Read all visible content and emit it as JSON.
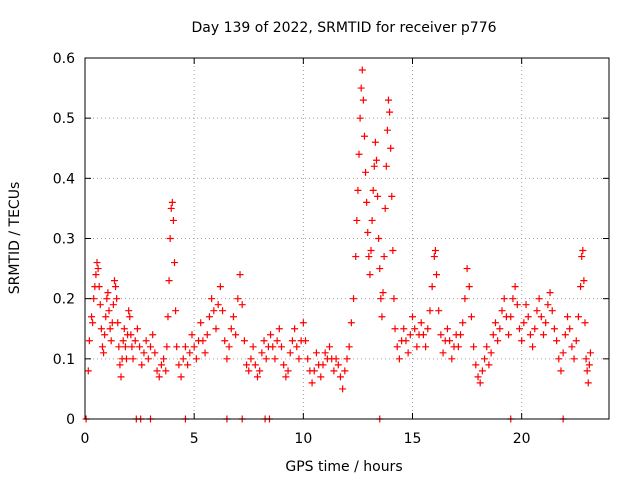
{
  "chart_data": {
    "type": "scatter",
    "title": "Day 139 of 2022, SRMTID for receiver p776",
    "xlabel": "GPS time / hours",
    "ylabel": "SRMTID / TECUs",
    "xlim": [
      0,
      24
    ],
    "ylim": [
      0,
      0.6
    ],
    "x_ticks": [
      0,
      5,
      10,
      15,
      20
    ],
    "x_tick_labels": [
      "0",
      "5",
      "10",
      "15",
      "20"
    ],
    "y_ticks": [
      0,
      0.1,
      0.2,
      0.3,
      0.4,
      0.5,
      0.6
    ],
    "y_tick_labels": [
      "0",
      "0.1",
      "0.2",
      "0.3",
      "0.4",
      "0.5",
      "0.6"
    ],
    "grid": true,
    "marker": "+",
    "color": "#ff0000",
    "series": [
      {
        "name": "SRMTID",
        "points": [
          [
            0.15,
            0.08
          ],
          [
            0.2,
            0.13
          ],
          [
            0.3,
            0.17
          ],
          [
            0.35,
            0.16
          ],
          [
            0.4,
            0.2
          ],
          [
            0.45,
            0.22
          ],
          [
            0.5,
            0.24
          ],
          [
            0.55,
            0.26
          ],
          [
            0.6,
            0.25
          ],
          [
            0.65,
            0.22
          ],
          [
            0.7,
            0.19
          ],
          [
            0.75,
            0.15
          ],
          [
            0.8,
            0.12
          ],
          [
            0.85,
            0.11
          ],
          [
            0.9,
            0.14
          ],
          [
            0.95,
            0.17
          ],
          [
            1.0,
            0.2
          ],
          [
            1.05,
            0.21
          ],
          [
            1.1,
            0.18
          ],
          [
            1.15,
            0.15
          ],
          [
            1.2,
            0.13
          ],
          [
            1.25,
            0.16
          ],
          [
            1.3,
            0.19
          ],
          [
            1.35,
            0.23
          ],
          [
            1.4,
            0.22
          ],
          [
            1.45,
            0.2
          ],
          [
            1.5,
            0.16
          ],
          [
            1.55,
            0.12
          ],
          [
            1.6,
            0.09
          ],
          [
            1.65,
            0.07
          ],
          [
            1.7,
            0.1
          ],
          [
            1.75,
            0.13
          ],
          [
            1.8,
            0.15
          ],
          [
            1.85,
            0.12
          ],
          [
            1.9,
            0.1
          ],
          [
            1.95,
            0.14
          ],
          [
            2.0,
            0.18
          ],
          [
            2.05,
            0.17
          ],
          [
            2.1,
            0.14
          ],
          [
            2.15,
            0.12
          ],
          [
            2.2,
            0.1
          ],
          [
            2.3,
            0.13
          ],
          [
            2.4,
            0.15
          ],
          [
            2.5,
            0.12
          ],
          [
            2.6,
            0.09
          ],
          [
            2.7,
            0.11
          ],
          [
            2.8,
            0.13
          ],
          [
            2.9,
            0.1
          ],
          [
            3.0,
            0.12
          ],
          [
            3.1,
            0.14
          ],
          [
            3.2,
            0.11
          ],
          [
            3.3,
            0.08
          ],
          [
            3.4,
            0.07
          ],
          [
            3.5,
            0.09
          ],
          [
            3.6,
            0.1
          ],
          [
            3.7,
            0.08
          ],
          [
            3.75,
            0.12
          ],
          [
            3.8,
            0.17
          ],
          [
            3.85,
            0.23
          ],
          [
            3.9,
            0.3
          ],
          [
            3.95,
            0.35
          ],
          [
            4.0,
            0.36
          ],
          [
            4.05,
            0.33
          ],
          [
            4.1,
            0.26
          ],
          [
            4.15,
            0.18
          ],
          [
            4.2,
            0.12
          ],
          [
            4.3,
            0.09
          ],
          [
            4.4,
            0.07
          ],
          [
            4.5,
            0.1
          ],
          [
            4.6,
            0.12
          ],
          [
            4.7,
            0.09
          ],
          [
            4.8,
            0.11
          ],
          [
            4.9,
            0.14
          ],
          [
            5.0,
            0.12
          ],
          [
            5.1,
            0.1
          ],
          [
            5.2,
            0.13
          ],
          [
            5.3,
            0.16
          ],
          [
            5.4,
            0.13
          ],
          [
            5.5,
            0.11
          ],
          [
            5.6,
            0.14
          ],
          [
            5.7,
            0.17
          ],
          [
            5.8,
            0.2
          ],
          [
            5.9,
            0.18
          ],
          [
            6.0,
            0.15
          ],
          [
            6.1,
            0.19
          ],
          [
            6.2,
            0.22
          ],
          [
            6.3,
            0.18
          ],
          [
            6.4,
            0.13
          ],
          [
            6.5,
            0.1
          ],
          [
            6.6,
            0.12
          ],
          [
            6.7,
            0.15
          ],
          [
            6.8,
            0.17
          ],
          [
            6.9,
            0.14
          ],
          [
            7.0,
            0.2
          ],
          [
            7.1,
            0.24
          ],
          [
            7.2,
            0.19
          ],
          [
            7.3,
            0.13
          ],
          [
            7.4,
            0.09
          ],
          [
            7.5,
            0.08
          ],
          [
            7.6,
            0.1
          ],
          [
            7.7,
            0.12
          ],
          [
            7.8,
            0.09
          ],
          [
            7.9,
            0.07
          ],
          [
            8.0,
            0.08
          ],
          [
            8.1,
            0.11
          ],
          [
            8.2,
            0.13
          ],
          [
            8.3,
            0.1
          ],
          [
            8.4,
            0.12
          ],
          [
            8.5,
            0.14
          ],
          [
            8.6,
            0.12
          ],
          [
            8.7,
            0.1
          ],
          [
            8.8,
            0.13
          ],
          [
            8.9,
            0.15
          ],
          [
            9.0,
            0.12
          ],
          [
            9.1,
            0.09
          ],
          [
            9.2,
            0.07
          ],
          [
            9.3,
            0.08
          ],
          [
            9.4,
            0.11
          ],
          [
            9.5,
            0.13
          ],
          [
            9.6,
            0.15
          ],
          [
            9.7,
            0.12
          ],
          [
            9.8,
            0.1
          ],
          [
            9.9,
            0.13
          ],
          [
            10.0,
            0.16
          ],
          [
            10.1,
            0.13
          ],
          [
            10.2,
            0.1
          ],
          [
            10.3,
            0.08
          ],
          [
            10.4,
            0.06
          ],
          [
            10.5,
            0.08
          ],
          [
            10.6,
            0.11
          ],
          [
            10.7,
            0.09
          ],
          [
            10.8,
            0.07
          ],
          [
            10.9,
            0.09
          ],
          [
            11.0,
            0.11
          ],
          [
            11.1,
            0.1
          ],
          [
            11.2,
            0.12
          ],
          [
            11.3,
            0.1
          ],
          [
            11.4,
            0.08
          ],
          [
            11.5,
            0.1
          ],
          [
            11.6,
            0.09
          ],
          [
            11.7,
            0.07
          ],
          [
            11.8,
            0.05
          ],
          [
            11.9,
            0.08
          ],
          [
            12.0,
            0.1
          ],
          [
            12.1,
            0.12
          ],
          [
            12.2,
            0.16
          ],
          [
            12.3,
            0.2
          ],
          [
            12.4,
            0.27
          ],
          [
            12.45,
            0.33
          ],
          [
            12.5,
            0.38
          ],
          [
            12.55,
            0.44
          ],
          [
            12.6,
            0.5
          ],
          [
            12.65,
            0.55
          ],
          [
            12.7,
            0.58
          ],
          [
            12.75,
            0.53
          ],
          [
            12.8,
            0.47
          ],
          [
            12.85,
            0.41
          ],
          [
            12.9,
            0.36
          ],
          [
            12.95,
            0.31
          ],
          [
            13.0,
            0.27
          ],
          [
            13.05,
            0.24
          ],
          [
            13.1,
            0.28
          ],
          [
            13.15,
            0.33
          ],
          [
            13.2,
            0.38
          ],
          [
            13.25,
            0.42
          ],
          [
            13.3,
            0.46
          ],
          [
            13.35,
            0.43
          ],
          [
            13.4,
            0.37
          ],
          [
            13.45,
            0.3
          ],
          [
            13.5,
            0.25
          ],
          [
            13.55,
            0.2
          ],
          [
            13.6,
            0.17
          ],
          [
            13.65,
            0.21
          ],
          [
            13.7,
            0.27
          ],
          [
            13.75,
            0.35
          ],
          [
            13.8,
            0.42
          ],
          [
            13.85,
            0.48
          ],
          [
            13.9,
            0.53
          ],
          [
            13.95,
            0.51
          ],
          [
            14.0,
            0.45
          ],
          [
            14.05,
            0.37
          ],
          [
            14.1,
            0.28
          ],
          [
            14.15,
            0.2
          ],
          [
            14.2,
            0.15
          ],
          [
            14.3,
            0.12
          ],
          [
            14.4,
            0.1
          ],
          [
            14.5,
            0.13
          ],
          [
            14.6,
            0.15
          ],
          [
            14.7,
            0.13
          ],
          [
            14.8,
            0.11
          ],
          [
            14.9,
            0.14
          ],
          [
            15.0,
            0.17
          ],
          [
            15.1,
            0.15
          ],
          [
            15.2,
            0.12
          ],
          [
            15.3,
            0.14
          ],
          [
            15.4,
            0.16
          ],
          [
            15.5,
            0.14
          ],
          [
            15.6,
            0.12
          ],
          [
            15.7,
            0.15
          ],
          [
            15.8,
            0.18
          ],
          [
            15.9,
            0.22
          ],
          [
            16.0,
            0.27
          ],
          [
            16.05,
            0.28
          ],
          [
            16.1,
            0.24
          ],
          [
            16.2,
            0.18
          ],
          [
            16.3,
            0.14
          ],
          [
            16.4,
            0.11
          ],
          [
            16.5,
            0.13
          ],
          [
            16.6,
            0.15
          ],
          [
            16.7,
            0.13
          ],
          [
            16.8,
            0.1
          ],
          [
            16.9,
            0.12
          ],
          [
            17.0,
            0.14
          ],
          [
            17.1,
            0.12
          ],
          [
            17.2,
            0.14
          ],
          [
            17.3,
            0.16
          ],
          [
            17.4,
            0.2
          ],
          [
            17.5,
            0.25
          ],
          [
            17.6,
            0.22
          ],
          [
            17.7,
            0.17
          ],
          [
            17.8,
            0.12
          ],
          [
            17.9,
            0.09
          ],
          [
            18.0,
            0.07
          ],
          [
            18.1,
            0.06
          ],
          [
            18.2,
            0.08
          ],
          [
            18.3,
            0.1
          ],
          [
            18.4,
            0.12
          ],
          [
            18.5,
            0.09
          ],
          [
            18.6,
            0.11
          ],
          [
            18.7,
            0.14
          ],
          [
            18.8,
            0.16
          ],
          [
            18.9,
            0.13
          ],
          [
            19.0,
            0.15
          ],
          [
            19.1,
            0.18
          ],
          [
            19.2,
            0.2
          ],
          [
            19.3,
            0.17
          ],
          [
            19.4,
            0.14
          ],
          [
            19.5,
            0.17
          ],
          [
            19.6,
            0.2
          ],
          [
            19.7,
            0.22
          ],
          [
            19.8,
            0.19
          ],
          [
            19.9,
            0.15
          ],
          [
            20.0,
            0.13
          ],
          [
            20.1,
            0.16
          ],
          [
            20.2,
            0.19
          ],
          [
            20.3,
            0.17
          ],
          [
            20.4,
            0.14
          ],
          [
            20.5,
            0.12
          ],
          [
            20.6,
            0.15
          ],
          [
            20.7,
            0.18
          ],
          [
            20.8,
            0.2
          ],
          [
            20.9,
            0.17
          ],
          [
            21.0,
            0.14
          ],
          [
            21.1,
            0.16
          ],
          [
            21.2,
            0.19
          ],
          [
            21.3,
            0.21
          ],
          [
            21.4,
            0.18
          ],
          [
            21.5,
            0.15
          ],
          [
            21.6,
            0.13
          ],
          [
            21.7,
            0.1
          ],
          [
            21.8,
            0.08
          ],
          [
            21.9,
            0.11
          ],
          [
            22.0,
            0.14
          ],
          [
            22.1,
            0.17
          ],
          [
            22.2,
            0.15
          ],
          [
            22.3,
            0.12
          ],
          [
            22.4,
            0.1
          ],
          [
            22.5,
            0.13
          ],
          [
            22.6,
            0.17
          ],
          [
            22.7,
            0.22
          ],
          [
            22.75,
            0.27
          ],
          [
            22.8,
            0.28
          ],
          [
            22.85,
            0.23
          ],
          [
            22.9,
            0.16
          ],
          [
            22.95,
            0.1
          ],
          [
            23.0,
            0.08
          ],
          [
            23.05,
            0.06
          ],
          [
            23.1,
            0.09
          ],
          [
            23.15,
            0.11
          ],
          [
            0.05,
            0.0
          ],
          [
            2.35,
            0.0
          ],
          [
            2.55,
            0.0
          ],
          [
            3.0,
            0.0
          ],
          [
            4.6,
            0.0
          ],
          [
            6.5,
            0.0
          ],
          [
            7.2,
            0.0
          ],
          [
            8.25,
            0.0
          ],
          [
            8.45,
            0.0
          ],
          [
            13.5,
            0.0
          ],
          [
            19.5,
            0.0
          ],
          [
            21.9,
            0.0
          ]
        ]
      }
    ]
  }
}
